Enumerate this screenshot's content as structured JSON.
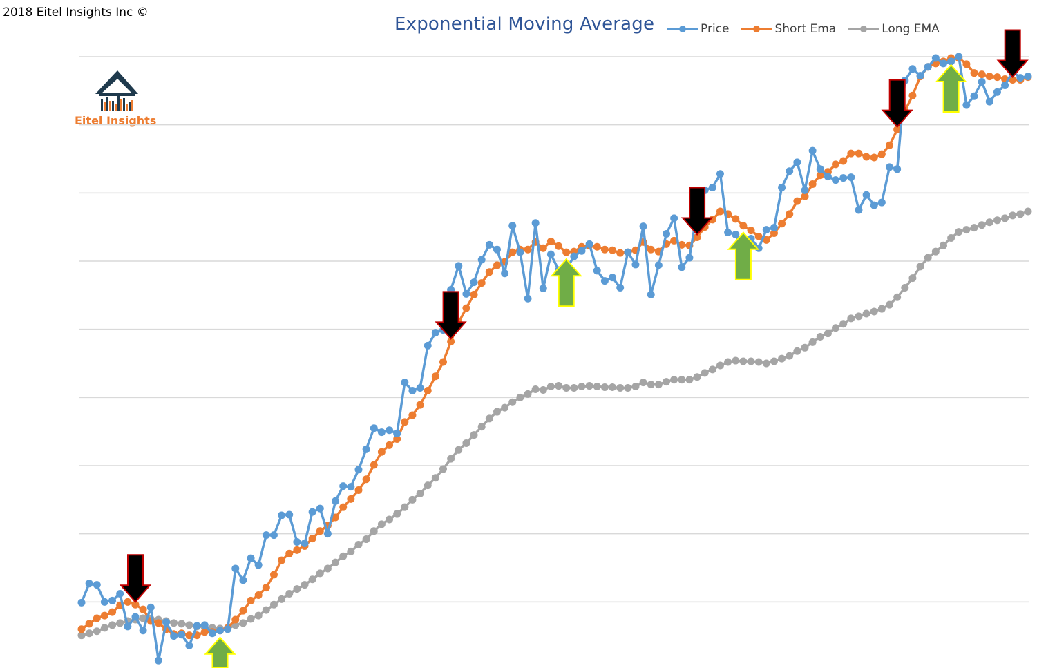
{
  "copyright": "2018 Eitel Insights Inc ©",
  "logo": {
    "name": "Eitel Insights"
  },
  "colors": {
    "price": "#5b9bd5",
    "short": "#ed7d31",
    "long": "#a5a5a5",
    "grid": "#d9d9d9",
    "down_arrow": "#000000",
    "down_arrow_border": "#c00000",
    "up_arrow": "#70ad47",
    "up_arrow_border": "#ffff00"
  },
  "chart_data": {
    "type": "line",
    "title": "Exponential Moving Average",
    "xlabel": "",
    "ylabel": "",
    "x": [
      1,
      2,
      3,
      4,
      5,
      6,
      7,
      8,
      9,
      10,
      11,
      12,
      13,
      14,
      15,
      16,
      17,
      18,
      19,
      20,
      21,
      22,
      23,
      24,
      25,
      26,
      27,
      28,
      29,
      30,
      31,
      32,
      33,
      34,
      35,
      36,
      37,
      38,
      39,
      40,
      41,
      42,
      43,
      44,
      45,
      46,
      47,
      48,
      49,
      50,
      51,
      52,
      53,
      54,
      55,
      56,
      57,
      58,
      59,
      60,
      61,
      62,
      63,
      64,
      65,
      66,
      67,
      68,
      69,
      70,
      71,
      72,
      73,
      74,
      75,
      76,
      77,
      78,
      79,
      80,
      81,
      82,
      83,
      84,
      85,
      86,
      87,
      88,
      89,
      90,
      91,
      92,
      93,
      94,
      95,
      96,
      97,
      98,
      99,
      100,
      101,
      102,
      103,
      104,
      105,
      106,
      107,
      108,
      109,
      110,
      111,
      112,
      113,
      114,
      115,
      116,
      117,
      118,
      119,
      120,
      121,
      122,
      123,
      124
    ],
    "ylim": [
      0,
      900
    ],
    "grid": true,
    "legend_position": "top",
    "series": [
      {
        "name": "Price",
        "values": [
          99,
          127,
          125,
          100,
          102,
          112,
          64,
          78,
          58,
          92,
          14,
          70,
          50,
          52,
          36,
          65,
          66,
          54,
          58,
          60,
          149,
          132,
          164,
          154,
          198,
          198,
          227,
          228,
          188,
          186,
          232,
          237,
          200,
          248,
          270,
          269,
          294,
          324,
          355,
          349,
          352,
          347,
          422,
          410,
          414,
          476,
          495,
          499,
          558,
          593,
          552,
          569,
          602,
          624,
          617,
          582,
          652,
          613,
          545,
          656,
          560,
          610,
          587,
          588,
          607,
          615,
          625,
          586,
          571,
          576,
          561,
          613,
          595,
          651,
          551,
          594,
          640,
          663,
          591,
          605,
          673,
          704,
          708,
          728,
          642,
          639,
          616,
          633,
          619,
          646,
          649,
          708,
          732,
          745,
          704,
          762,
          735,
          724,
          719,
          722,
          723,
          675,
          697,
          682,
          686,
          738,
          735,
          865,
          882,
          872,
          885,
          898,
          890,
          893,
          900,
          829,
          842,
          863,
          834,
          848,
          858,
          878,
          869,
          871
        ]
      },
      {
        "name": "Short Ema",
        "values": [
          60,
          68,
          76,
          80,
          85,
          95,
          100,
          96,
          89,
          72,
          69,
          60,
          53,
          54,
          51,
          51,
          56,
          56,
          58,
          62,
          74,
          87,
          102,
          110,
          121,
          140,
          161,
          171,
          176,
          182,
          193,
          204,
          212,
          224,
          239,
          251,
          264,
          280,
          301,
          320,
          330,
          339,
          364,
          374,
          389,
          410,
          431,
          452,
          482,
          510,
          531,
          551,
          568,
          584,
          594,
          599,
          613,
          617,
          617,
          628,
          619,
          629,
          622,
          613,
          614,
          621,
          623,
          621,
          617,
          616,
          612,
          613,
          616,
          628,
          617,
          614,
          625,
          630,
          624,
          623,
          635,
          650,
          661,
          673,
          669,
          662,
          652,
          645,
          636,
          631,
          641,
          655,
          669,
          688,
          695,
          713,
          726,
          731,
          742,
          747,
          758,
          758,
          753,
          752,
          757,
          770,
          793,
          820,
          843,
          871,
          885,
          890,
          893,
          898,
          898,
          889,
          876,
          874,
          871,
          870,
          867,
          866,
          866,
          870
        ]
      },
      {
        "name": "Long EMA",
        "values": [
          51,
          54,
          57,
          62,
          66,
          69,
          72,
          74,
          76,
          75,
          74,
          72,
          69,
          68,
          66,
          64,
          63,
          62,
          61,
          61,
          66,
          69,
          75,
          80,
          88,
          96,
          104,
          112,
          119,
          125,
          133,
          142,
          149,
          158,
          167,
          174,
          184,
          192,
          204,
          214,
          221,
          229,
          239,
          250,
          259,
          271,
          282,
          295,
          310,
          323,
          333,
          345,
          357,
          369,
          379,
          385,
          393,
          400,
          405,
          412,
          411,
          416,
          417,
          414,
          414,
          416,
          417,
          416,
          415,
          415,
          414,
          414,
          416,
          422,
          419,
          419,
          423,
          426,
          426,
          426,
          430,
          436,
          441,
          447,
          452,
          454,
          453,
          453,
          452,
          450,
          453,
          457,
          461,
          468,
          473,
          481,
          489,
          494,
          502,
          508,
          516,
          519,
          523,
          526,
          530,
          536,
          547,
          561,
          575,
          592,
          605,
          614,
          623,
          634,
          643,
          646,
          649,
          653,
          657,
          660,
          663,
          667,
          669,
          673
        ]
      }
    ],
    "markers": [
      {
        "type": "down",
        "index": 7
      },
      {
        "type": "up",
        "index": 18
      },
      {
        "type": "down",
        "index": 48
      },
      {
        "type": "up",
        "index": 63
      },
      {
        "type": "down",
        "index": 80
      },
      {
        "type": "up",
        "index": 86
      },
      {
        "type": "down",
        "index": 106
      },
      {
        "type": "up",
        "index": 113
      },
      {
        "type": "down",
        "index": 121
      }
    ]
  }
}
